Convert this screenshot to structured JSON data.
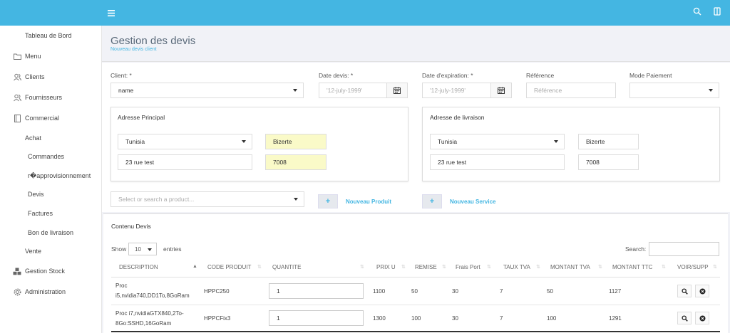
{
  "sidebar": {
    "items": [
      {
        "label": "Tableau de Bord",
        "icon": ""
      },
      {
        "label": "Menu",
        "icon": "folder-icon"
      },
      {
        "label": "Clients",
        "icon": "users-icon"
      },
      {
        "label": "Fournisseurs",
        "icon": "users-icon"
      },
      {
        "label": "Commercial",
        "icon": "book-icon"
      }
    ],
    "sub": {
      "achat": "Achat",
      "commandes": "Commandes",
      "reappro": "r�approvisionnement",
      "devis": "Devis",
      "factures": "Factures",
      "bon_livraison": "Bon de livraison",
      "vente": "Vente"
    },
    "bottom": [
      {
        "label": "Gestion Stock",
        "icon": "cubes-icon"
      },
      {
        "label": "Administration",
        "icon": "gear-icon"
      }
    ]
  },
  "header": {
    "title": "Gestion des devis",
    "subtitle": "Nouveau devis client"
  },
  "form": {
    "client_label": "Client: *",
    "client_value": "name",
    "date_devis_label": "Date devis: *",
    "date_devis_placeholder": "'12-july-1999'",
    "date_expiration_label": "Date d'expiration: *",
    "date_expiration_placeholder": "'12-july-1999'",
    "reference_label": "Référence",
    "reference_placeholder": "Référence",
    "mode_paiement_label": "Mode Paiement",
    "mode_paiement_value": ""
  },
  "adresse_principal": {
    "title": "Adresse Principal",
    "pays": "Tunisia",
    "ville": "Bizerte",
    "rue": "23 rue test",
    "code_postal": "7008"
  },
  "adresse_livraison": {
    "title": "Adresse de livraison",
    "pays": "Tunisia",
    "ville": "Bizerte",
    "rue": "23 rue test",
    "code_postal": "7008"
  },
  "products": {
    "select_placeholder": "Select or search a product...",
    "nouveau_produit": "Nouveau Produit",
    "nouveau_service": "Nouveau Service",
    "plus": "+"
  },
  "table": {
    "title": "Contenu Devis",
    "show_label": "Show",
    "entries_value": "10",
    "entries_label": "entries",
    "search_label": "Search:",
    "columns": [
      "DESCRIPTION",
      "CODE PRODUIT",
      "QUANTITE",
      "PRIX U",
      "REMISE",
      "Frais Port",
      "TAUX TVA",
      "MONTANT TVA",
      "MONTANT TTC",
      "VOIR/SUPP"
    ],
    "rows": [
      {
        "desc1": "Proc",
        "desc2": "i5,nvidia740,DD1To,8GoRam",
        "code": "HPPC250",
        "qty": "1",
        "prix": "1100",
        "remise": "50",
        "frais": "30",
        "tva": "7",
        "montant_tva": "50",
        "ttc": "1127"
      },
      {
        "desc1": "Proc i7,nvidiaGTX840,2To-",
        "desc2": "8Go:SSHD,16GoRam",
        "code": "HPPCFix3",
        "qty": "1",
        "prix": "1300",
        "remise": "100",
        "frais": "30",
        "tva": "7",
        "montant_tva": "100",
        "ttc": "1291"
      }
    ]
  },
  "colors": {
    "topbar": "#44b6e2",
    "highlight": "#fafac8"
  }
}
